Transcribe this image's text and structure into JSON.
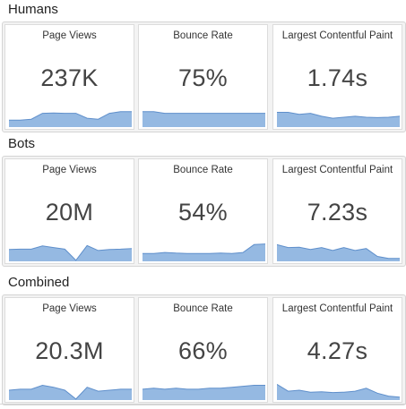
{
  "sections": [
    {
      "title": "Humans",
      "metrics": [
        {
          "label": "Page Views",
          "value": "237K",
          "trend": [
            0.35,
            0.35,
            0.4,
            0.7,
            0.72,
            0.7,
            0.7,
            0.45,
            0.4,
            0.7,
            0.78,
            0.78
          ]
        },
        {
          "label": "Bounce Rate",
          "value": "75%",
          "trend": [
            0.78,
            0.78,
            0.7,
            0.7,
            0.7,
            0.7,
            0.7,
            0.7,
            0.7,
            0.7,
            0.7,
            0.7
          ]
        },
        {
          "label": "Largest Contentful Paint",
          "value": "1.74s",
          "trend": [
            0.75,
            0.75,
            0.65,
            0.7,
            0.55,
            0.45,
            0.5,
            0.55,
            0.5,
            0.48,
            0.5,
            0.55
          ]
        }
      ]
    },
    {
      "title": "Bots",
      "metrics": [
        {
          "label": "Page Views",
          "value": "20M",
          "trend": [
            0.6,
            0.62,
            0.62,
            0.78,
            0.7,
            0.62,
            0.05,
            0.8,
            0.55,
            0.6,
            0.62,
            0.65
          ]
        },
        {
          "label": "Bounce Rate",
          "value": "54%",
          "trend": [
            0.4,
            0.4,
            0.45,
            0.42,
            0.4,
            0.4,
            0.4,
            0.42,
            0.4,
            0.45,
            0.85,
            0.88
          ]
        },
        {
          "label": "Largest Contentful Paint",
          "value": "7.23s",
          "trend": [
            0.85,
            0.7,
            0.72,
            0.6,
            0.7,
            0.55,
            0.7,
            0.55,
            0.65,
            0.25,
            0.15,
            0.15
          ]
        }
      ]
    },
    {
      "title": "Combined",
      "metrics": [
        {
          "label": "Page Views",
          "value": "20.3M",
          "trend": [
            0.5,
            0.55,
            0.55,
            0.75,
            0.65,
            0.5,
            0.05,
            0.65,
            0.45,
            0.5,
            0.55,
            0.55
          ]
        },
        {
          "label": "Bounce Rate",
          "value": "66%",
          "trend": [
            0.55,
            0.6,
            0.55,
            0.6,
            0.55,
            0.55,
            0.6,
            0.6,
            0.65,
            0.7,
            0.75,
            0.75
          ]
        },
        {
          "label": "Largest Contentful Paint",
          "value": "4.27s",
          "trend": [
            0.8,
            0.45,
            0.5,
            0.4,
            0.42,
            0.38,
            0.4,
            0.45,
            0.6,
            0.35,
            0.2,
            0.15
          ]
        }
      ]
    }
  ],
  "colors": {
    "spark_fill": "#95b9e2",
    "spark_line": "#5f8fcb"
  }
}
